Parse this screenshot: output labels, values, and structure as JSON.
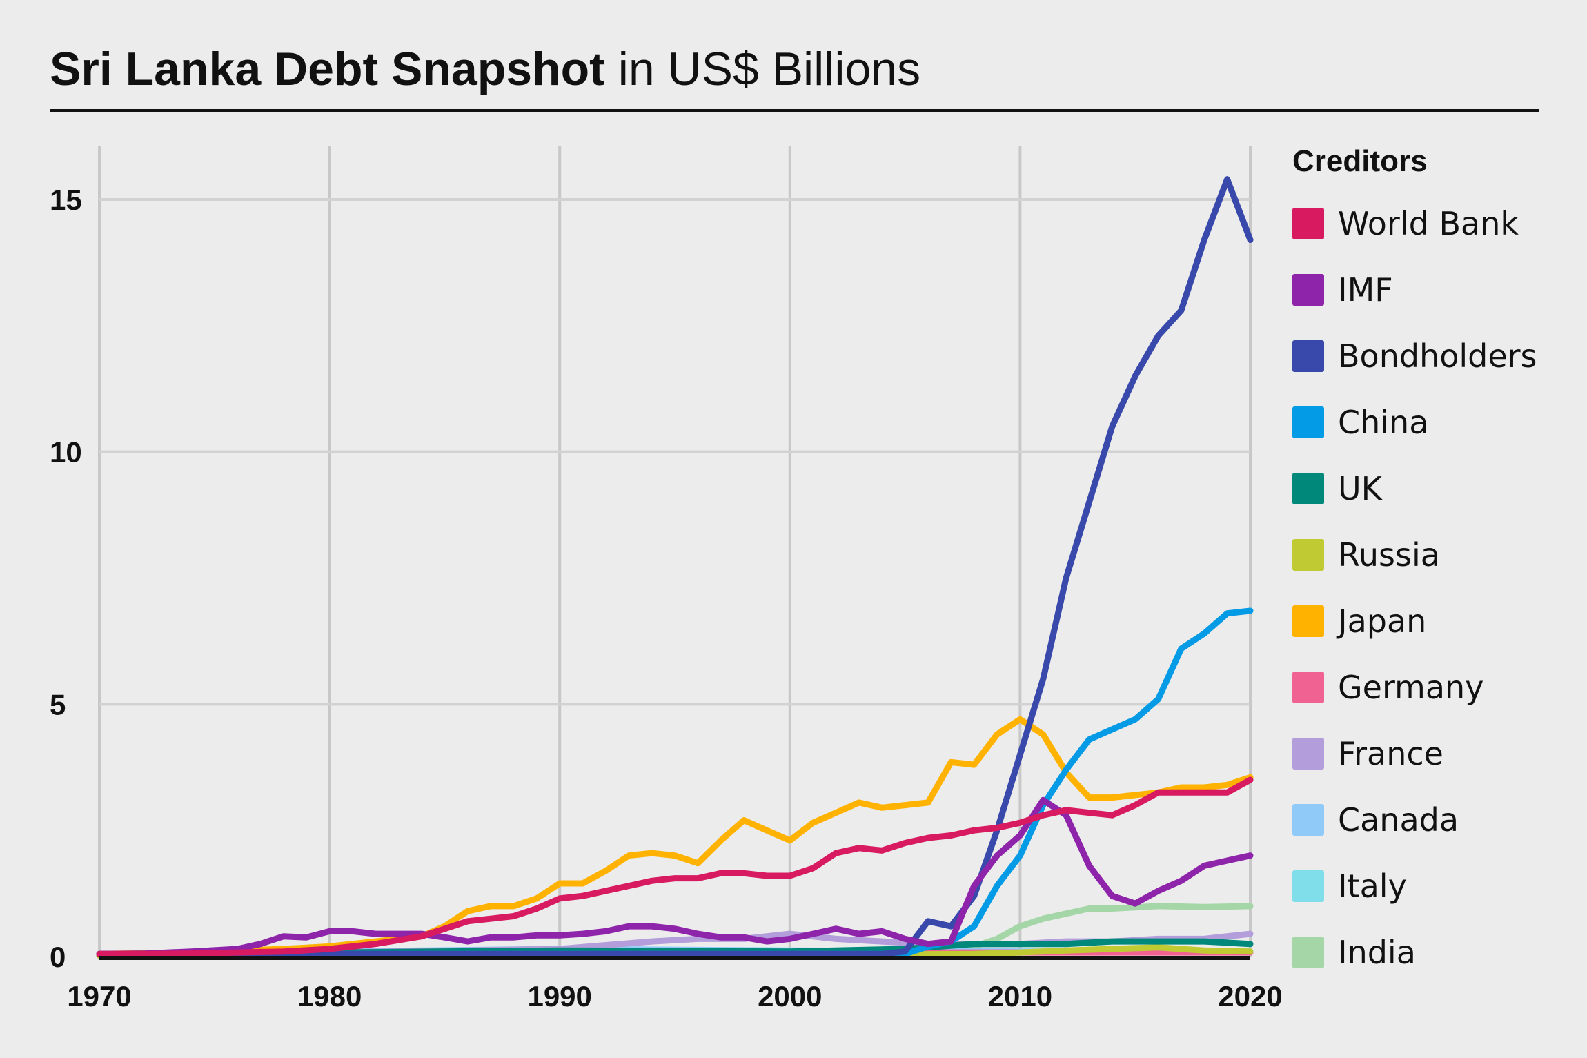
{
  "title": {
    "bold": "Sri Lanka Debt Snapshot",
    "rest": " in US$ Billions"
  },
  "legend": {
    "title": "Creditors"
  },
  "chart_data": {
    "type": "line",
    "title": "Sri Lanka Debt Snapshot in US$ Billions",
    "xlabel": "",
    "ylabel": "",
    "xlim": [
      1970,
      2020
    ],
    "ylim": [
      0,
      16
    ],
    "x_ticks": [
      "1970",
      "1980",
      "1990",
      "2000",
      "2010",
      "2020"
    ],
    "y_ticks": [
      "0",
      "5",
      "10",
      "15"
    ],
    "grid": true,
    "legend_position": "right",
    "series": [
      {
        "name": "World Bank",
        "color": "#d81b60",
        "x": [
          1970,
          1972,
          1974,
          1976,
          1978,
          1980,
          1982,
          1984,
          1985,
          1986,
          1987,
          1988,
          1989,
          1990,
          1991,
          1992,
          1993,
          1994,
          1995,
          1996,
          1997,
          1998,
          1999,
          2000,
          2001,
          2002,
          2003,
          2004,
          2005,
          2006,
          2007,
          2008,
          2009,
          2010,
          2011,
          2012,
          2013,
          2014,
          2015,
          2016,
          2017,
          2018,
          2019,
          2020
        ],
        "y": [
          0.05,
          0.05,
          0.06,
          0.08,
          0.1,
          0.15,
          0.25,
          0.4,
          0.55,
          0.7,
          0.75,
          0.8,
          0.95,
          1.15,
          1.2,
          1.3,
          1.4,
          1.5,
          1.55,
          1.55,
          1.65,
          1.65,
          1.6,
          1.6,
          1.75,
          2.05,
          2.15,
          2.1,
          2.25,
          2.35,
          2.4,
          2.5,
          2.55,
          2.65,
          2.8,
          2.9,
          2.85,
          2.8,
          3.0,
          3.25,
          3.25,
          3.25,
          3.25,
          3.5
        ]
      },
      {
        "name": "IMF",
        "color": "#8e24aa",
        "x": [
          1970,
          1972,
          1974,
          1976,
          1977,
          1978,
          1979,
          1980,
          1981,
          1982,
          1984,
          1985,
          1986,
          1987,
          1988,
          1989,
          1990,
          1991,
          1992,
          1993,
          1994,
          1995,
          1996,
          1997,
          1998,
          1999,
          2000,
          2001,
          2002,
          2003,
          2004,
          2005,
          2006,
          2007,
          2008,
          2009,
          2010,
          2011,
          2012,
          2013,
          2014,
          2015,
          2016,
          2017,
          2018,
          2019,
          2020
        ],
        "y": [
          0.05,
          0.06,
          0.1,
          0.15,
          0.25,
          0.4,
          0.38,
          0.5,
          0.5,
          0.45,
          0.45,
          0.38,
          0.3,
          0.38,
          0.38,
          0.42,
          0.42,
          0.45,
          0.5,
          0.6,
          0.6,
          0.55,
          0.45,
          0.38,
          0.38,
          0.3,
          0.35,
          0.45,
          0.55,
          0.45,
          0.5,
          0.35,
          0.25,
          0.3,
          1.4,
          2.0,
          2.4,
          3.1,
          2.8,
          1.8,
          1.2,
          1.05,
          1.3,
          1.5,
          1.8,
          1.9,
          2.0
        ]
      },
      {
        "name": "Bondholders",
        "color": "#3949ab",
        "x": [
          1970,
          1980,
          1990,
          2000,
          2004,
          2005,
          2006,
          2007,
          2008,
          2009,
          2010,
          2011,
          2012,
          2013,
          2014,
          2015,
          2016,
          2017,
          2018,
          2019,
          2020
        ],
        "y": [
          0.05,
          0.05,
          0.05,
          0.05,
          0.05,
          0.1,
          0.7,
          0.6,
          1.2,
          2.5,
          4.0,
          5.5,
          7.5,
          9.0,
          10.5,
          11.5,
          12.3,
          12.8,
          14.2,
          15.4,
          14.2
        ]
      },
      {
        "name": "China",
        "color": "#039be5",
        "x": [
          1970,
          1980,
          1990,
          2000,
          2004,
          2005,
          2006,
          2007,
          2008,
          2009,
          2010,
          2011,
          2012,
          2013,
          2014,
          2015,
          2016,
          2017,
          2018,
          2019,
          2020
        ],
        "y": [
          0.05,
          0.05,
          0.05,
          0.05,
          0.05,
          0.05,
          0.2,
          0.3,
          0.6,
          1.4,
          2.0,
          3.0,
          3.7,
          4.3,
          4.5,
          4.7,
          5.1,
          6.1,
          6.4,
          6.8,
          6.85
        ]
      },
      {
        "name": "UK",
        "color": "#00897b",
        "x": [
          1970,
          1980,
          1990,
          2000,
          2005,
          2008,
          2010,
          2012,
          2014,
          2016,
          2018,
          2020
        ],
        "y": [
          0.05,
          0.08,
          0.12,
          0.1,
          0.15,
          0.25,
          0.25,
          0.25,
          0.3,
          0.3,
          0.3,
          0.25
        ]
      },
      {
        "name": "Russia",
        "color": "#c0ca33",
        "x": [
          1970,
          1990,
          2008,
          2010,
          2012,
          2014,
          2016,
          2018,
          2020
        ],
        "y": [
          0.02,
          0.02,
          0.05,
          0.08,
          0.12,
          0.15,
          0.18,
          0.12,
          0.1
        ]
      },
      {
        "name": "Japan",
        "color": "#ffb300",
        "x": [
          1970,
          1974,
          1978,
          1980,
          1982,
          1984,
          1985,
          1986,
          1987,
          1988,
          1989,
          1990,
          1991,
          1992,
          1993,
          1994,
          1995,
          1996,
          1997,
          1998,
          1999,
          2000,
          2001,
          2002,
          2003,
          2004,
          2005,
          2006,
          2007,
          2008,
          2009,
          2010,
          2011,
          2012,
          2013,
          2014,
          2015,
          2016,
          2017,
          2018,
          2019,
          2020
        ],
        "y": [
          0.05,
          0.08,
          0.15,
          0.2,
          0.3,
          0.4,
          0.6,
          0.9,
          1.0,
          1.0,
          1.15,
          1.45,
          1.45,
          1.7,
          2.0,
          2.05,
          2.0,
          1.85,
          2.3,
          2.7,
          2.5,
          2.3,
          2.65,
          2.85,
          3.05,
          2.95,
          3.0,
          3.05,
          3.85,
          3.8,
          4.4,
          4.7,
          4.4,
          3.65,
          3.15,
          3.15,
          3.2,
          3.25,
          3.35,
          3.35,
          3.4,
          3.55
        ]
      },
      {
        "name": "Germany",
        "color": "#f06292",
        "x": [
          1970,
          1980,
          1990,
          2000,
          2010,
          2020
        ],
        "y": [
          0.03,
          0.06,
          0.1,
          0.08,
          0.08,
          0.08
        ]
      },
      {
        "name": "France",
        "color": "#b39ddb",
        "x": [
          1970,
          1980,
          1990,
          1994,
          1996,
          1998,
          2000,
          2002,
          2004,
          2006,
          2008,
          2010,
          2012,
          2014,
          2016,
          2018,
          2020
        ],
        "y": [
          0.03,
          0.08,
          0.15,
          0.3,
          0.35,
          0.35,
          0.45,
          0.35,
          0.3,
          0.25,
          0.25,
          0.25,
          0.3,
          0.3,
          0.35,
          0.35,
          0.45
        ]
      },
      {
        "name": "Canada",
        "color": "#90caf9",
        "x": [
          1970,
          1980,
          1990,
          2000,
          2010,
          2020
        ],
        "y": [
          0.03,
          0.1,
          0.15,
          0.12,
          0.1,
          0.08
        ]
      },
      {
        "name": "Italy",
        "color": "#80deea",
        "x": [
          1970,
          1980,
          1990,
          2000,
          2010,
          2020
        ],
        "y": [
          0.02,
          0.05,
          0.08,
          0.08,
          0.1,
          0.1
        ]
      },
      {
        "name": "India",
        "color": "#a5d6a7",
        "x": [
          1970,
          1990,
          2000,
          2006,
          2008,
          2009,
          2010,
          2011,
          2012,
          2013,
          2014,
          2016,
          2018,
          2020
        ],
        "y": [
          0.02,
          0.03,
          0.05,
          0.1,
          0.2,
          0.35,
          0.6,
          0.75,
          0.85,
          0.95,
          0.95,
          1.0,
          0.98,
          1.0
        ]
      }
    ]
  }
}
